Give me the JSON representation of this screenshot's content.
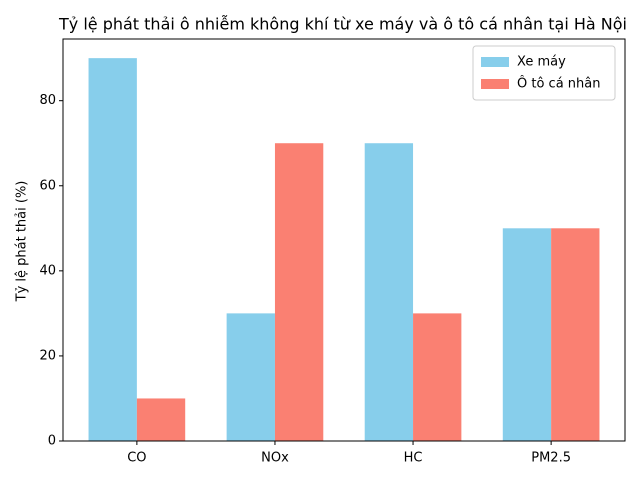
{
  "chart_data": {
    "type": "bar",
    "title": "Tỷ lệ phát thải ô nhiễm không khí từ xe máy và ô tô cá nhân tại Hà Nội",
    "ylabel": "Tỷ lệ phát thải (%)",
    "categories": [
      "CO",
      "NOx",
      "HC",
      "PM2.5"
    ],
    "series": [
      {
        "name": "Xe máy",
        "color": "#87ceeb",
        "values": [
          90,
          30,
          70,
          50
        ]
      },
      {
        "name": "Ô tô cá nhân",
        "color": "#fa8072",
        "values": [
          10,
          70,
          30,
          50
        ]
      }
    ],
    "ylim": [
      0,
      94.5
    ],
    "yticks": [
      0,
      20,
      40,
      60,
      80
    ],
    "legend": "upper right"
  }
}
